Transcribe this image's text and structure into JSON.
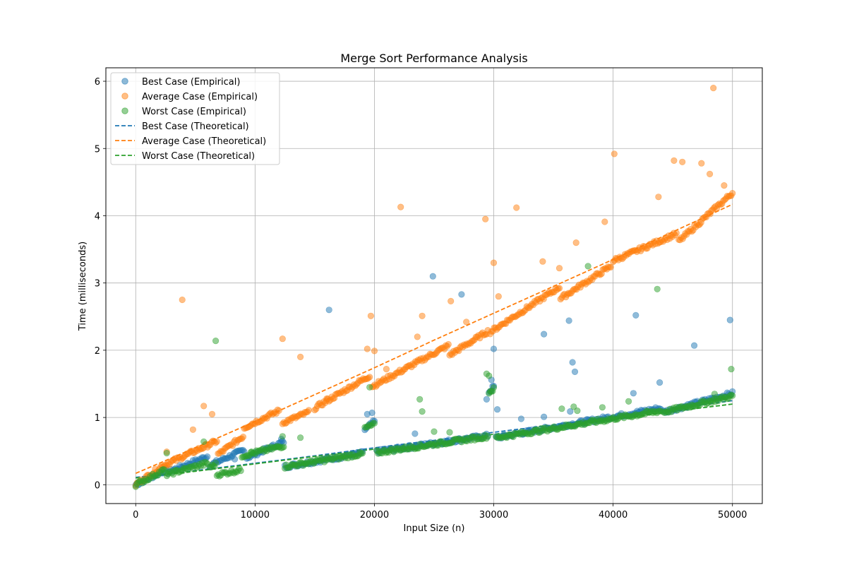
{
  "chart_data": {
    "type": "scatter",
    "title": "Merge Sort Performance Analysis",
    "xlabel": "Input Size (n)",
    "ylabel": "Time (milliseconds)",
    "xlim": [
      -2500,
      52500
    ],
    "ylim": [
      -0.28,
      6.2
    ],
    "x_ticks": [
      0,
      10000,
      20000,
      30000,
      40000,
      50000
    ],
    "y_ticks": [
      0,
      1,
      2,
      3,
      4,
      5,
      6
    ],
    "grid": true,
    "legend_position": "upper left",
    "series": [
      {
        "name": "Best Case (Empirical)",
        "kind": "scatter",
        "color": "#1f77b4",
        "segments": [
          [
            [
              0,
              0.0
            ],
            [
              2500,
              0.22
            ]
          ],
          [
            [
              2700,
              0.19
            ],
            [
              6000,
              0.42
            ]
          ],
          [
            [
              6200,
              0.29
            ],
            [
              9100,
              0.52
            ]
          ],
          [
            [
              9300,
              0.4
            ],
            [
              12400,
              0.64
            ]
          ],
          [
            [
              12500,
              0.27
            ],
            [
              19000,
              0.47
            ]
          ],
          [
            [
              19200,
              0.82
            ],
            [
              20000,
              0.94
            ]
          ],
          [
            [
              20200,
              0.49
            ],
            [
              29500,
              0.73
            ]
          ],
          [
            [
              29600,
              1.38
            ],
            [
              30000,
              1.46
            ]
          ],
          [
            [
              30200,
              0.7
            ],
            [
              44000,
              1.14
            ]
          ],
          [
            [
              44200,
              1.08
            ],
            [
              50000,
              1.36
            ]
          ]
        ],
        "outliers": [
          [
            16200,
            2.6
          ],
          [
            24900,
            3.1
          ],
          [
            27300,
            2.83
          ],
          [
            29400,
            1.27
          ],
          [
            30000,
            2.02
          ],
          [
            29800,
            1.56
          ],
          [
            34200,
            2.24
          ],
          [
            36300,
            2.44
          ],
          [
            36600,
            1.82
          ],
          [
            36800,
            1.68
          ],
          [
            41900,
            2.52
          ],
          [
            41700,
            1.36
          ],
          [
            43900,
            1.52
          ],
          [
            46800,
            2.07
          ],
          [
            49800,
            2.45
          ],
          [
            19400,
            1.05
          ],
          [
            19800,
            1.07
          ],
          [
            23400,
            0.76
          ],
          [
            30300,
            1.12
          ],
          [
            32300,
            0.98
          ],
          [
            34200,
            1.01
          ],
          [
            36400,
            1.09
          ],
          [
            12200,
            0.68
          ],
          [
            8300,
            0.38
          ]
        ]
      },
      {
        "name": "Average Case (Empirical)",
        "kind": "scatter",
        "color": "#ff7f0e",
        "segments": [
          [
            [
              0,
              0.0
            ],
            [
              2400,
              0.3
            ]
          ],
          [
            [
              2500,
              0.3
            ],
            [
              6800,
              0.65
            ]
          ],
          [
            [
              6900,
              0.45
            ],
            [
              9000,
              0.72
            ]
          ],
          [
            [
              9100,
              0.85
            ],
            [
              12000,
              1.1
            ]
          ],
          [
            [
              12300,
              0.92
            ],
            [
              14500,
              1.08
            ]
          ],
          [
            [
              15000,
              1.14
            ],
            [
              19600,
              1.62
            ]
          ],
          [
            [
              19800,
              1.46
            ],
            [
              26200,
              2.07
            ]
          ],
          [
            [
              26300,
              1.93
            ],
            [
              29500,
              2.28
            ]
          ],
          [
            [
              29700,
              2.27
            ],
            [
              35500,
              2.94
            ]
          ],
          [
            [
              35600,
              2.77
            ],
            [
              39800,
              3.25
            ]
          ],
          [
            [
              40000,
              3.33
            ],
            [
              45300,
              3.73
            ]
          ],
          [
            [
              45500,
              3.62
            ],
            [
              50000,
              4.34
            ]
          ]
        ],
        "outliers": [
          [
            3900,
            2.75
          ],
          [
            12300,
            2.17
          ],
          [
            13800,
            1.9
          ],
          [
            22200,
            4.13
          ],
          [
            19700,
            2.51
          ],
          [
            24000,
            2.51
          ],
          [
            26400,
            2.73
          ],
          [
            27700,
            2.42
          ],
          [
            29300,
            3.95
          ],
          [
            30000,
            3.3
          ],
          [
            31900,
            4.12
          ],
          [
            36900,
            3.6
          ],
          [
            39300,
            3.91
          ],
          [
            40100,
            4.92
          ],
          [
            43800,
            4.28
          ],
          [
            45100,
            4.82
          ],
          [
            45800,
            4.8
          ],
          [
            47400,
            4.78
          ],
          [
            48100,
            4.62
          ],
          [
            48400,
            5.9
          ],
          [
            49300,
            4.45
          ],
          [
            4800,
            0.82
          ],
          [
            5700,
            1.17
          ],
          [
            6400,
            1.05
          ],
          [
            2600,
            0.49
          ],
          [
            19400,
            2.02
          ],
          [
            20000,
            1.99
          ],
          [
            30400,
            2.8
          ],
          [
            34100,
            3.32
          ],
          [
            35500,
            3.22
          ],
          [
            16000,
            1.28
          ],
          [
            21000,
            1.72
          ],
          [
            23600,
            2.2
          ]
        ]
      },
      {
        "name": "Worst Case (Empirical)",
        "kind": "scatter",
        "color": "#2ca02c",
        "segments": [
          [
            [
              0,
              0.0
            ],
            [
              2400,
              0.22
            ]
          ],
          [
            [
              2500,
              0.15
            ],
            [
              6000,
              0.32
            ]
          ],
          [
            [
              6200,
              0.26
            ],
            [
              6700,
              0.3
            ]
          ],
          [
            [
              6800,
              0.15
            ],
            [
              8800,
              0.22
            ]
          ],
          [
            [
              8900,
              0.43
            ],
            [
              12400,
              0.58
            ]
          ],
          [
            [
              12500,
              0.27
            ],
            [
              19000,
              0.46
            ]
          ],
          [
            [
              19200,
              0.84
            ],
            [
              20000,
              0.9
            ]
          ],
          [
            [
              20200,
              0.48
            ],
            [
              29500,
              0.72
            ]
          ],
          [
            [
              29600,
              1.38
            ],
            [
              30000,
              1.42
            ]
          ],
          [
            [
              30200,
              0.7
            ],
            [
              44000,
              1.1
            ]
          ],
          [
            [
              44200,
              1.08
            ],
            [
              50000,
              1.32
            ]
          ]
        ],
        "outliers": [
          [
            6700,
            2.14
          ],
          [
            23800,
            1.27
          ],
          [
            24000,
            1.09
          ],
          [
            29400,
            1.65
          ],
          [
            29600,
            1.62
          ],
          [
            37900,
            3.25
          ],
          [
            43700,
            2.91
          ],
          [
            49900,
            1.72
          ],
          [
            5700,
            0.64
          ],
          [
            2600,
            0.47
          ],
          [
            13800,
            0.7
          ],
          [
            19600,
            1.45
          ],
          [
            25000,
            0.79
          ],
          [
            26300,
            0.78
          ],
          [
            35700,
            1.13
          ],
          [
            36700,
            1.16
          ],
          [
            37000,
            1.1
          ],
          [
            39100,
            1.15
          ],
          [
            41300,
            1.24
          ],
          [
            48500,
            1.35
          ],
          [
            12300,
            0.72
          ],
          [
            12000,
            0.56
          ],
          [
            9700,
            0.49
          ]
        ]
      },
      {
        "name": "Best Case (Theoretical)",
        "kind": "line",
        "color": "#1f77b4",
        "x": [
          0,
          5000,
          10000,
          15000,
          20000,
          25000,
          30000,
          35000,
          40000,
          45000,
          50000
        ],
        "y": [
          0.11,
          0.21,
          0.32,
          0.43,
          0.55,
          0.66,
          0.78,
          0.89,
          1.01,
          1.13,
          1.25
        ]
      },
      {
        "name": "Average Case (Theoretical)",
        "kind": "line",
        "color": "#ff7f0e",
        "x": [
          0,
          5000,
          10000,
          15000,
          20000,
          25000,
          30000,
          35000,
          40000,
          45000,
          50000
        ],
        "y": [
          0.17,
          0.55,
          0.94,
          1.34,
          1.74,
          2.15,
          2.55,
          2.95,
          3.35,
          3.76,
          4.17
        ]
      },
      {
        "name": "Worst Case (Theoretical)",
        "kind": "line",
        "color": "#2ca02c",
        "x": [
          0,
          5000,
          10000,
          15000,
          20000,
          25000,
          30000,
          35000,
          40000,
          45000,
          50000
        ],
        "y": [
          0.1,
          0.2,
          0.31,
          0.42,
          0.53,
          0.64,
          0.75,
          0.86,
          0.97,
          1.09,
          1.2
        ]
      }
    ]
  }
}
